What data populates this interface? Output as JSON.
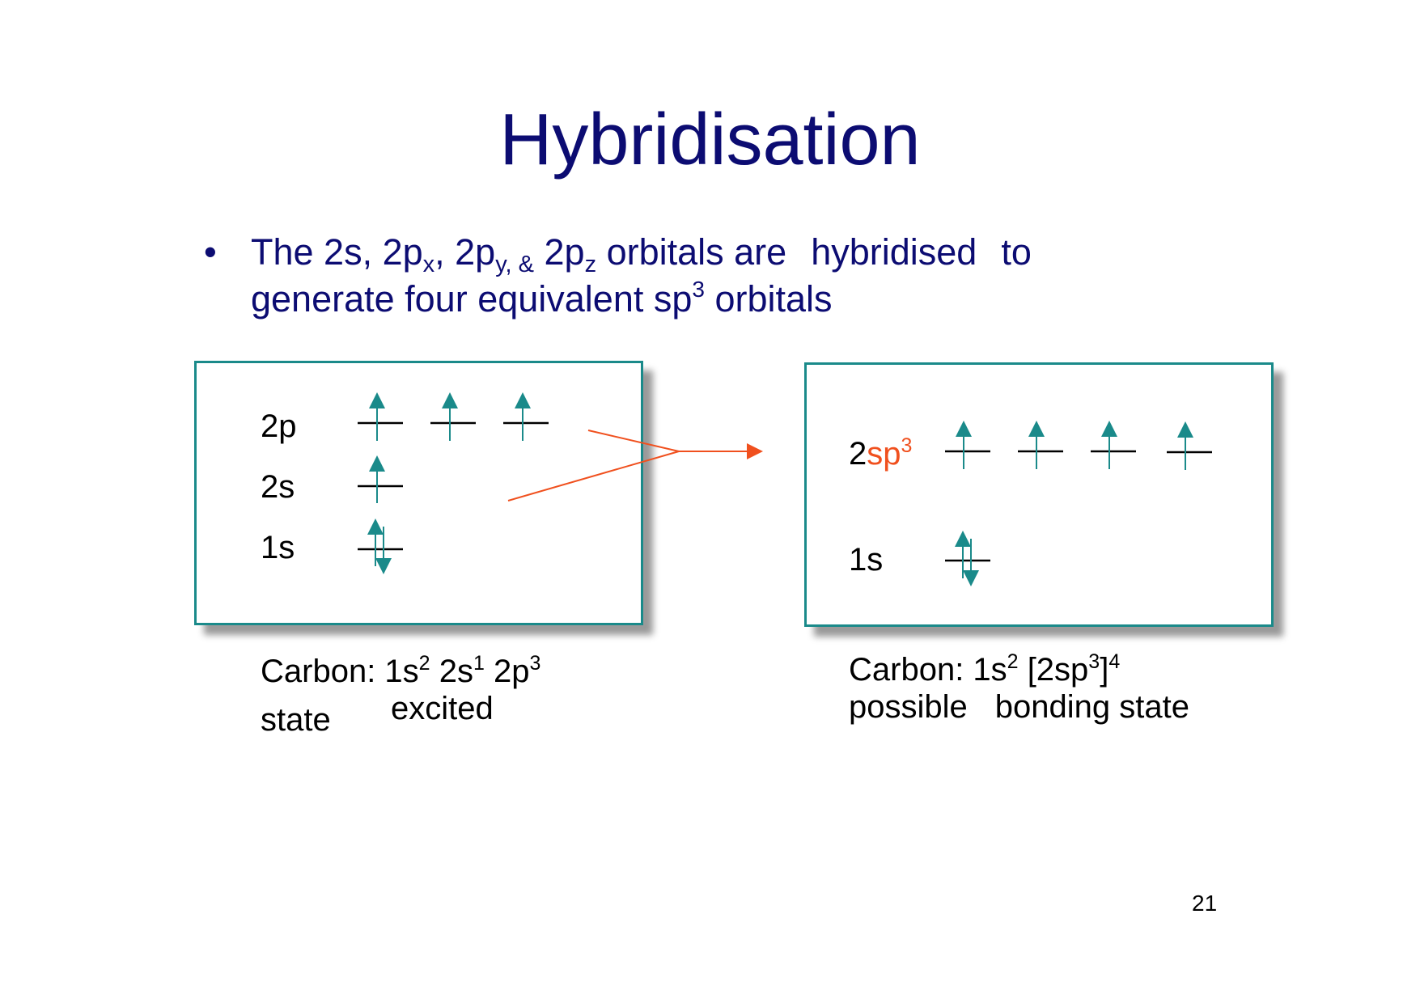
{
  "title": "Hybridisation",
  "bullet": {
    "dot": "•",
    "t1": "The 2s, 2p",
    "sub_x": "x",
    "t2": ", 2p",
    "sub_y": "y, &",
    "t3": " 2p",
    "sub_z": "z",
    "t4": " orbitals are",
    "t5": "hybridised",
    "t6": "to",
    "line2_a": "generate four equivalent sp",
    "line2_sup": "3",
    "line2_b": " orbitals"
  },
  "left_diagram": {
    "label_2p": "2p",
    "label_2s": "2s",
    "label_1s": "1s"
  },
  "right_diagram": {
    "label_2sp_prefix": "2",
    "label_2sp_main": "sp",
    "label_2sp_sup": "3",
    "label_1s": "1s"
  },
  "left_caption": {
    "a": "Carbon:  1s",
    "sup1": "2",
    "b": " 2s",
    "sup2": "1",
    "c": " 2p",
    "sup3": "3",
    "state": "state",
    "excited": "excited"
  },
  "right_caption": {
    "a": "Carbon:  1s",
    "sup1": "2",
    "b": " [2sp",
    "sup2": "3",
    "c": "]",
    "sup3": "4",
    "line2a": "possible",
    "line2b": "bonding state"
  },
  "page_number": "21",
  "colors": {
    "title": "#0c0c72",
    "teal": "#1a8a8a",
    "orange": "#f0501e"
  },
  "icons": [
    "up-arrow-icon",
    "down-arrow-icon",
    "right-arrow-icon"
  ]
}
